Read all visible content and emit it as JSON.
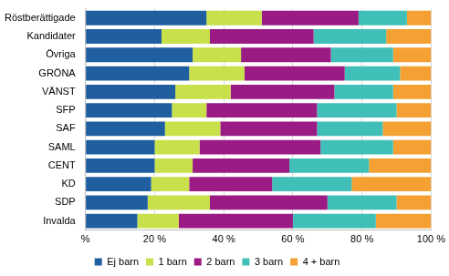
{
  "chart_data": {
    "type": "bar",
    "orientation": "horizontal",
    "stacked": true,
    "grid": true,
    "legend": "bottom",
    "categories": [
      "Röstberättigade",
      "Kandidater",
      "Övriga",
      "GRÖNA",
      "VÄNST",
      "SFP",
      "SAF",
      "SAML",
      "CENT",
      "KD",
      "SDP",
      "Invalda"
    ],
    "series": [
      {
        "name": "Ej barn",
        "color": "#1f5f9f",
        "values": [
          35,
          22,
          31,
          30,
          26,
          25,
          23,
          20,
          20,
          19,
          18,
          15
        ]
      },
      {
        "name": "1 barn",
        "color": "#c8e04a",
        "values": [
          16,
          14,
          14,
          16,
          16,
          10,
          16,
          13,
          11,
          11,
          18,
          12
        ]
      },
      {
        "name": "2 barn",
        "color": "#9a1b84",
        "values": [
          28,
          30,
          26,
          29,
          30,
          32,
          28,
          35,
          28,
          24,
          34,
          33
        ]
      },
      {
        "name": "3 barn",
        "color": "#3fbfb8",
        "values": [
          14,
          21,
          18,
          16,
          17,
          23,
          19,
          21,
          23,
          23,
          20,
          24
        ]
      },
      {
        "name": "4 + barn",
        "color": "#f5a033",
        "values": [
          7,
          13,
          11,
          9,
          11,
          10,
          14,
          11,
          18,
          23,
          10,
          16
        ]
      }
    ],
    "xlim": [
      0,
      100
    ],
    "xticks": [
      {
        "value": 0,
        "label": "%"
      },
      {
        "value": 20,
        "label": "20 %"
      },
      {
        "value": 40,
        "label": "40 %"
      },
      {
        "value": 60,
        "label": "60 %"
      },
      {
        "value": 80,
        "label": "80 %"
      },
      {
        "value": 100,
        "label": "100 %"
      }
    ]
  }
}
